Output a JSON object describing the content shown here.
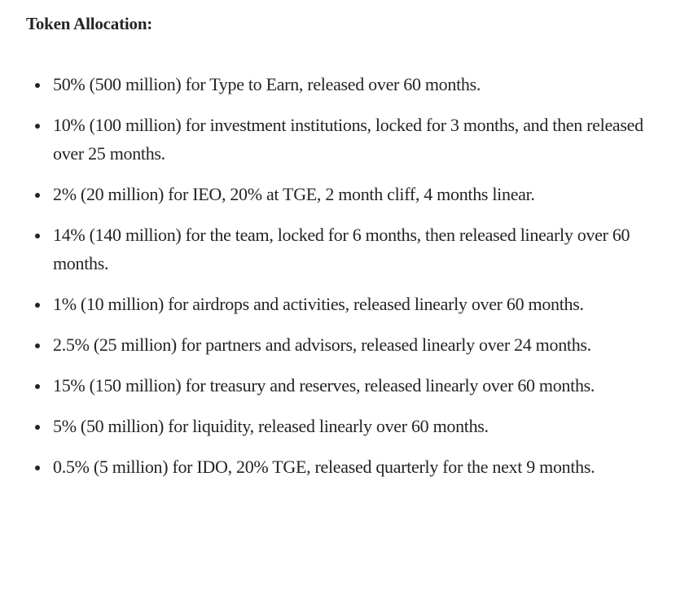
{
  "document": {
    "heading": "Token Allocation:",
    "items": [
      "50% (500 million) for Type to Earn, released over 60 months.",
      "10% (100 million) for investment institutions, locked for 3 months, and then released over 25 months.",
      "2% (20 million) for IEO, 20% at TGE, 2 month cliff, 4 months linear.",
      "14% (140 million) for the team, locked for 6 months, then released linearly over 60 months.",
      "1% (10 million) for airdrops and activities, released linearly over 60 months.",
      "2.5% (25 million) for partners and advisors, released linearly over 24 months.",
      "15% (150 million) for treasury and reserves, released linearly over 60 months.",
      "5% (50 million) for liquidity, released linearly over 60 months.",
      "0.5% (5 million) for IDO, 20% TGE, released quarterly for the next 9 months."
    ]
  }
}
